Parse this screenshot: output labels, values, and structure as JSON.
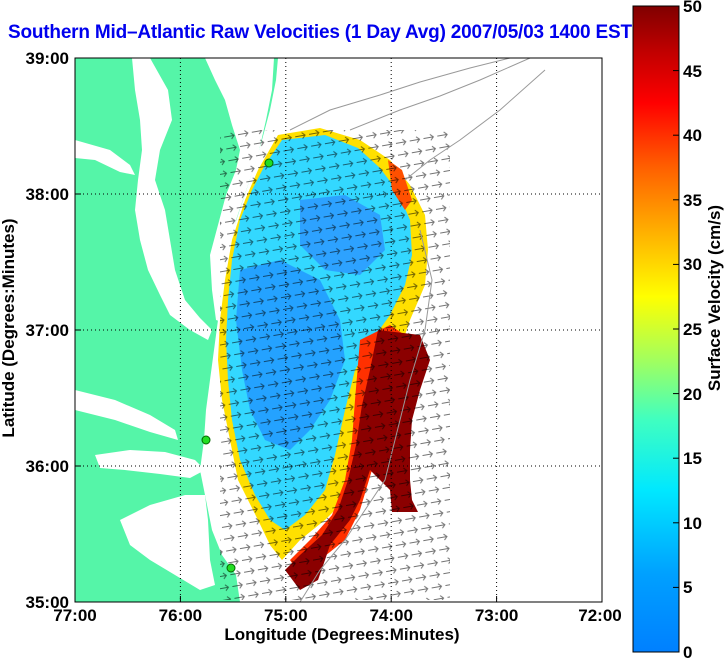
{
  "title": "Southern Mid–Atlantic Raw Velocities (1 Day Avg) 2007/05/03 1400 EST",
  "x_axis": {
    "label": "Longitude (Degrees:Minutes)",
    "ticks": [
      "77:00",
      "76:00",
      "75:00",
      "74:00",
      "73:00",
      "72:00"
    ]
  },
  "y_axis": {
    "label": "Latitude (Degrees:Minutes)",
    "ticks": [
      "39:00",
      "38:00",
      "37:00",
      "36:00",
      "35:00"
    ]
  },
  "colorbar": {
    "label": "Surface Velocity (cm/s)",
    "ticks": [
      "0",
      "5",
      "10",
      "15",
      "20",
      "25",
      "30",
      "35",
      "40",
      "45",
      "50"
    ],
    "range": [
      0,
      50
    ],
    "colormap": "jet"
  },
  "map": {
    "lon_range": [
      -77.0,
      -72.0
    ],
    "lat_range": [
      35.0,
      39.0
    ],
    "land_color": "#55f5a8",
    "water_color": "#ffffff",
    "grid": "dotted",
    "station_markers": "green dots along coast"
  }
}
